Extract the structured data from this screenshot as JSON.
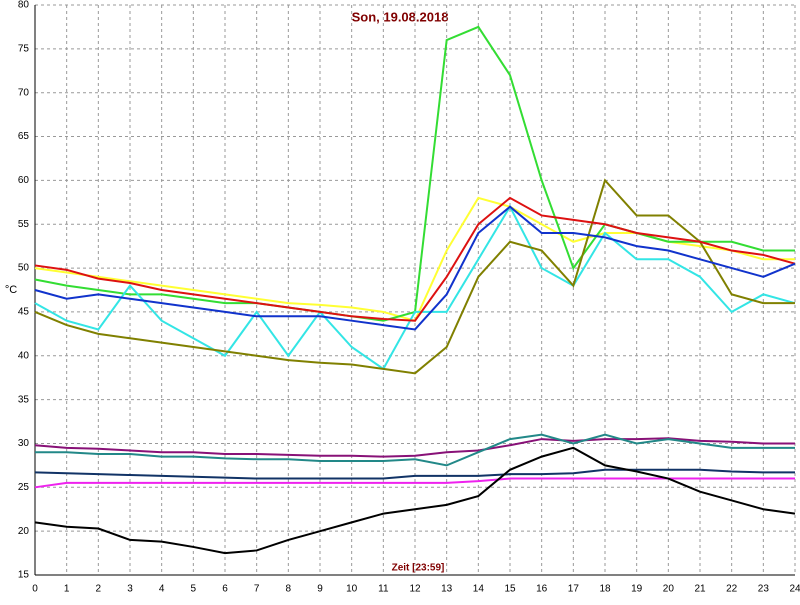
{
  "chart_data": {
    "type": "line",
    "title": "Son, 19.08.2018",
    "x_label": "Zeit [23:59]",
    "y_label": "°C",
    "x": [
      0,
      1,
      2,
      3,
      4,
      5,
      6,
      7,
      8,
      9,
      10,
      11,
      12,
      13,
      14,
      15,
      16,
      17,
      18,
      19,
      20,
      21,
      22,
      23,
      24
    ],
    "xlim": [
      0,
      24
    ],
    "xticks": [
      0,
      1,
      2,
      3,
      4,
      5,
      6,
      7,
      8,
      9,
      10,
      11,
      12,
      13,
      14,
      15,
      16,
      17,
      18,
      19,
      20,
      21,
      22,
      23,
      24
    ],
    "ylim": [
      15,
      80
    ],
    "yticks": [
      15,
      20,
      25,
      30,
      35,
      40,
      45,
      50,
      55,
      60,
      65,
      70,
      75,
      80
    ],
    "grid": true,
    "series": [
      {
        "color": "#ffff33",
        "values": [
          50,
          49.5,
          49,
          48.5,
          48,
          47.5,
          47,
          46.5,
          46,
          45.8,
          45.5,
          45,
          44,
          52,
          58,
          57,
          55,
          53,
          54,
          54,
          53,
          52.5,
          52,
          51,
          51
        ]
      },
      {
        "color": "#33dd33",
        "values": [
          48.7,
          48,
          47.5,
          47,
          47,
          46.5,
          46,
          46,
          45.5,
          45,
          44.5,
          44,
          45,
          76,
          77.5,
          72,
          60,
          50,
          55,
          54,
          53,
          53,
          53,
          52,
          52
        ]
      },
      {
        "color": "#33e5e5",
        "values": [
          46,
          44,
          43,
          48,
          44,
          42,
          40,
          45,
          40,
          45,
          41,
          38.5,
          45,
          45,
          51,
          57,
          50,
          48,
          54,
          51,
          51,
          49,
          45,
          47,
          46
        ]
      },
      {
        "color": "#808000",
        "values": [
          45,
          43.5,
          42.5,
          42,
          41.5,
          41,
          40.5,
          40,
          39.5,
          39.2,
          39,
          38.5,
          38,
          41,
          49,
          53,
          52,
          48,
          60,
          56,
          56,
          53,
          47,
          46,
          46
        ]
      },
      {
        "color": "#dd1111",
        "values": [
          50.3,
          49.8,
          48.8,
          48.3,
          47.5,
          47,
          46.5,
          46,
          45.5,
          45,
          44.5,
          44.2,
          44,
          49,
          55,
          58,
          56,
          55.5,
          55,
          54,
          53.5,
          53,
          52,
          51.5,
          50.5
        ]
      },
      {
        "color": "#1133cc",
        "values": [
          47.5,
          46.5,
          47,
          46.5,
          46,
          45.5,
          45,
          44.5,
          44.5,
          44.5,
          44,
          43.5,
          43,
          47,
          54,
          57,
          54,
          54,
          53.5,
          52.5,
          52,
          51,
          50,
          49,
          50.5
        ]
      },
      {
        "color": "#881177",
        "values": [
          29.8,
          29.5,
          29.4,
          29.2,
          29,
          29,
          28.8,
          28.8,
          28.7,
          28.6,
          28.6,
          28.5,
          28.6,
          29,
          29.2,
          29.8,
          30.5,
          30.3,
          30.5,
          30.5,
          30.6,
          30.3,
          30.2,
          30,
          30
        ]
      },
      {
        "color": "#228888",
        "values": [
          29,
          29,
          28.8,
          28.8,
          28.5,
          28.5,
          28.3,
          28.2,
          28.2,
          28,
          28,
          28,
          28.2,
          27.5,
          29,
          30.5,
          31,
          30,
          31,
          30,
          30.5,
          30,
          29.5,
          29.5,
          29.5
        ]
      },
      {
        "color": "#113366",
        "values": [
          26.7,
          26.6,
          26.5,
          26.4,
          26.3,
          26.2,
          26.1,
          26,
          26,
          26,
          26,
          26,
          26.3,
          26.3,
          26.3,
          26.5,
          26.5,
          26.6,
          27,
          27,
          27,
          27,
          26.8,
          26.7,
          26.7
        ]
      },
      {
        "color": "#ee22ee",
        "values": [
          25,
          25.5,
          25.5,
          25.5,
          25.5,
          25.5,
          25.5,
          25.5,
          25.5,
          25.5,
          25.5,
          25.5,
          25.5,
          25.5,
          25.7,
          26,
          26,
          26,
          26,
          26,
          26,
          26,
          26,
          26,
          26
        ]
      },
      {
        "color": "#000000",
        "values": [
          21,
          20.5,
          20.3,
          19,
          18.8,
          18.2,
          17.5,
          17.8,
          19,
          20,
          21,
          22,
          22.5,
          23,
          24,
          27,
          28.5,
          29.5,
          27.5,
          26.8,
          26,
          24.5,
          23.5,
          22.5,
          22
        ]
      }
    ]
  }
}
